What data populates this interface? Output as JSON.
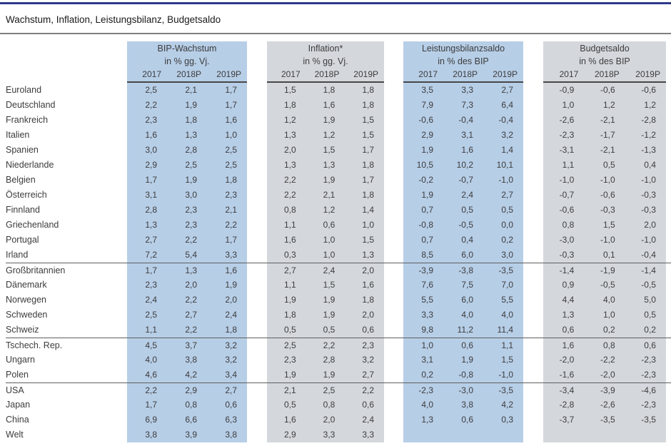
{
  "title": "Wachstum, Inflation, Leistungsbilanz, Budgetsaldo",
  "colors": {
    "blue_band": "#b7cee7",
    "gray_band": "#d4d8dd",
    "top_accent_line": "#2e3a8c",
    "title_divider": "#7f7f7f",
    "header_underline": "#474747",
    "group_separator": "#5f5f5f",
    "text": "#3c3c3c"
  },
  "table": {
    "groups": [
      {
        "title": "BIP-Wachstum",
        "unit": "in % gg. Vj.",
        "years": [
          "2017",
          "2018P",
          "2019P"
        ],
        "tone": "blue"
      },
      {
        "title": "Inflation*",
        "unit": "in % gg. Vj.",
        "years": [
          "2017",
          "2018P",
          "2019P"
        ],
        "tone": "gray"
      },
      {
        "title": "Leistungsbilanzsaldo",
        "unit": "in % des BIP",
        "years": [
          "2017",
          "2018P",
          "2019P"
        ],
        "tone": "blue"
      },
      {
        "title": "Budgetsaldo",
        "unit": "in % des BIP",
        "years": [
          "2017",
          "2018P",
          "2019P"
        ],
        "tone": "gray"
      }
    ],
    "rows": [
      {
        "country": "Euroland",
        "sep": false,
        "values": [
          [
            "2,5",
            "2,1",
            "1,7"
          ],
          [
            "1,5",
            "1,8",
            "1,8"
          ],
          [
            "3,5",
            "3,3",
            "2,7"
          ],
          [
            "-0,9",
            "-0,6",
            "-0,6"
          ]
        ]
      },
      {
        "country": "Deutschland",
        "sep": false,
        "values": [
          [
            "2,2",
            "1,9",
            "1,7"
          ],
          [
            "1,8",
            "1,6",
            "1,8"
          ],
          [
            "7,9",
            "7,3",
            "6,4"
          ],
          [
            "1,0",
            "1,2",
            "1,2"
          ]
        ]
      },
      {
        "country": "Frankreich",
        "sep": false,
        "values": [
          [
            "2,3",
            "1,8",
            "1,6"
          ],
          [
            "1,2",
            "1,9",
            "1,5"
          ],
          [
            "-0,6",
            "-0,4",
            "-0,4"
          ],
          [
            "-2,6",
            "-2,1",
            "-2,8"
          ]
        ]
      },
      {
        "country": "Italien",
        "sep": false,
        "values": [
          [
            "1,6",
            "1,3",
            "1,0"
          ],
          [
            "1,3",
            "1,2",
            "1,5"
          ],
          [
            "2,9",
            "3,1",
            "3,2"
          ],
          [
            "-2,3",
            "-1,7",
            "-1,2"
          ]
        ]
      },
      {
        "country": "Spanien",
        "sep": false,
        "values": [
          [
            "3,0",
            "2,8",
            "2,5"
          ],
          [
            "2,0",
            "1,5",
            "1,7"
          ],
          [
            "1,9",
            "1,6",
            "1,4"
          ],
          [
            "-3,1",
            "-2,1",
            "-1,3"
          ]
        ]
      },
      {
        "country": "Niederlande",
        "sep": false,
        "values": [
          [
            "2,9",
            "2,5",
            "2,5"
          ],
          [
            "1,3",
            "1,3",
            "1,8"
          ],
          [
            "10,5",
            "10,2",
            "10,1"
          ],
          [
            "1,1",
            "0,5",
            "0,4"
          ]
        ]
      },
      {
        "country": "Belgien",
        "sep": false,
        "values": [
          [
            "1,7",
            "1,9",
            "1,8"
          ],
          [
            "2,2",
            "1,9",
            "1,7"
          ],
          [
            "-0,2",
            "-0,7",
            "-1,0"
          ],
          [
            "-1,0",
            "-1,0",
            "-1,0"
          ]
        ]
      },
      {
        "country": "Österreich",
        "sep": false,
        "values": [
          [
            "3,1",
            "3,0",
            "2,3"
          ],
          [
            "2,2",
            "2,1",
            "1,8"
          ],
          [
            "1,9",
            "2,4",
            "2,7"
          ],
          [
            "-0,7",
            "-0,6",
            "-0,3"
          ]
        ]
      },
      {
        "country": "Finnland",
        "sep": false,
        "values": [
          [
            "2,8",
            "2,3",
            "2,1"
          ],
          [
            "0,8",
            "1,2",
            "1,4"
          ],
          [
            "0,7",
            "0,5",
            "0,5"
          ],
          [
            "-0,6",
            "-0,3",
            "-0,3"
          ]
        ]
      },
      {
        "country": "Griechenland",
        "sep": false,
        "values": [
          [
            "1,3",
            "2,3",
            "2,2"
          ],
          [
            "1,1",
            "0,6",
            "1,0"
          ],
          [
            "-0,8",
            "-0,5",
            "0,0"
          ],
          [
            "0,8",
            "1,5",
            "2,0"
          ]
        ]
      },
      {
        "country": "Portugal",
        "sep": false,
        "values": [
          [
            "2,7",
            "2,2",
            "1,7"
          ],
          [
            "1,6",
            "1,0",
            "1,5"
          ],
          [
            "0,7",
            "0,4",
            "0,2"
          ],
          [
            "-3,0",
            "-1,0",
            "-1,0"
          ]
        ]
      },
      {
        "country": "Irland",
        "sep": false,
        "values": [
          [
            "7,2",
            "5,4",
            "3,3"
          ],
          [
            "0,3",
            "1,0",
            "1,3"
          ],
          [
            "8,5",
            "6,0",
            "3,0"
          ],
          [
            "-0,3",
            "0,1",
            "-0,4"
          ]
        ]
      },
      {
        "country": "Großbritannien",
        "sep": true,
        "values": [
          [
            "1,7",
            "1,3",
            "1,6"
          ],
          [
            "2,7",
            "2,4",
            "2,0"
          ],
          [
            "-3,9",
            "-3,8",
            "-3,5"
          ],
          [
            "-1,4",
            "-1,9",
            "-1,4"
          ]
        ]
      },
      {
        "country": "Dänemark",
        "sep": false,
        "values": [
          [
            "2,3",
            "2,0",
            "1,9"
          ],
          [
            "1,1",
            "1,5",
            "1,6"
          ],
          [
            "7,6",
            "7,5",
            "7,0"
          ],
          [
            "0,9",
            "-0,5",
            "-0,5"
          ]
        ]
      },
      {
        "country": "Norwegen",
        "sep": false,
        "values": [
          [
            "2,4",
            "2,2",
            "2,0"
          ],
          [
            "1,9",
            "1,9",
            "1,8"
          ],
          [
            "5,5",
            "6,0",
            "5,5"
          ],
          [
            "4,4",
            "4,0",
            "5,0"
          ]
        ]
      },
      {
        "country": "Schweden",
        "sep": false,
        "values": [
          [
            "2,5",
            "2,7",
            "2,4"
          ],
          [
            "1,8",
            "1,9",
            "2,0"
          ],
          [
            "3,3",
            "4,0",
            "4,0"
          ],
          [
            "1,3",
            "1,0",
            "0,5"
          ]
        ]
      },
      {
        "country": "Schweiz",
        "sep": false,
        "values": [
          [
            "1,1",
            "2,2",
            "1,8"
          ],
          [
            "0,5",
            "0,5",
            "0,6"
          ],
          [
            "9,8",
            "11,2",
            "11,4"
          ],
          [
            "0,6",
            "0,2",
            "0,2"
          ]
        ]
      },
      {
        "country": "Tschech. Rep.",
        "sep": true,
        "values": [
          [
            "4,5",
            "3,7",
            "3,2"
          ],
          [
            "2,5",
            "2,2",
            "2,3"
          ],
          [
            "1,0",
            "0,6",
            "1,1"
          ],
          [
            "1,6",
            "0,8",
            "0,6"
          ]
        ]
      },
      {
        "country": "Ungarn",
        "sep": false,
        "values": [
          [
            "4,0",
            "3,8",
            "3,2"
          ],
          [
            "2,3",
            "2,8",
            "3,2"
          ],
          [
            "3,1",
            "1,9",
            "1,5"
          ],
          [
            "-2,0",
            "-2,2",
            "-2,3"
          ]
        ]
      },
      {
        "country": "Polen",
        "sep": false,
        "values": [
          [
            "4,6",
            "4,2",
            "3,4"
          ],
          [
            "1,9",
            "1,9",
            "2,7"
          ],
          [
            "0,2",
            "-0,8",
            "-1,0"
          ],
          [
            "-1,6",
            "-2,0",
            "-2,3"
          ]
        ]
      },
      {
        "country": "USA",
        "sep": true,
        "values": [
          [
            "2,2",
            "2,9",
            "2,7"
          ],
          [
            "2,1",
            "2,5",
            "2,2"
          ],
          [
            "-2,3",
            "-3,0",
            "-3,5"
          ],
          [
            "-3,4",
            "-3,9",
            "-4,6"
          ]
        ]
      },
      {
        "country": "Japan",
        "sep": false,
        "values": [
          [
            "1,7",
            "0,8",
            "0,6"
          ],
          [
            "0,5",
            "0,8",
            "0,6"
          ],
          [
            "4,0",
            "3,8",
            "4,2"
          ],
          [
            "-2,8",
            "-2,6",
            "-2,3"
          ]
        ]
      },
      {
        "country": "China",
        "sep": false,
        "values": [
          [
            "6,9",
            "6,6",
            "6,3"
          ],
          [
            "1,6",
            "2,0",
            "2,4"
          ],
          [
            "1,3",
            "0,6",
            "0,3"
          ],
          [
            "-3,7",
            "-3,5",
            "-3,5"
          ]
        ]
      },
      {
        "country": "Welt",
        "sep": false,
        "values": [
          [
            "3,8",
            "3,9",
            "3,8"
          ],
          [
            "2,9",
            "3,3",
            "3,3"
          ],
          [
            "",
            "",
            ""
          ],
          [
            "",
            "",
            ""
          ]
        ]
      }
    ]
  }
}
